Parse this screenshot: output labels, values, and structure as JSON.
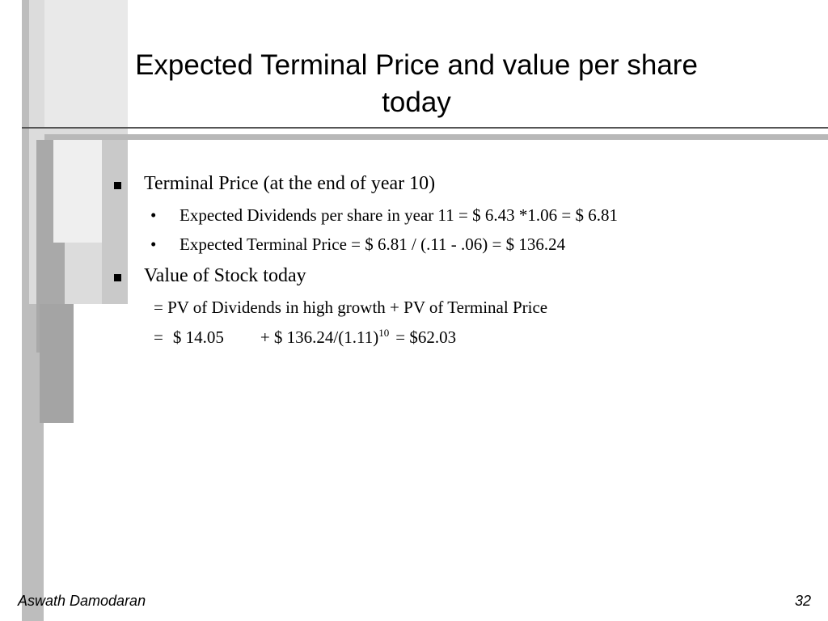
{
  "slide": {
    "title_line1": "Expected Terminal Price and value per share",
    "title_line2": "today",
    "bullets": [
      {
        "text": "Terminal Price (at the end of year 10)",
        "subs": [
          "Expected Dividends per share in year 11 = $ 6.43 *1.06 = $ 6.81",
          "Expected Terminal Price = $ 6.81 / (.11 - .06) = $ 136.24"
        ]
      },
      {
        "text": "Value of Stock today",
        "lines": [
          {
            "text": "= PV of Dividends in high growth + PV of Terminal Price"
          },
          {
            "eq": "=",
            "part1": "$ 14.05",
            "part2": "+ $ 136.24/(1.11)",
            "exponent": "10",
            "part3": "= $62.03"
          }
        ]
      }
    ]
  },
  "footer": {
    "author": "Aswath Damodaran",
    "page": "32"
  },
  "colors": {
    "bar_light": "#e8e8e8",
    "bar_mid": "#c4c4c4",
    "bar_dark": "#a9a9a9",
    "rule": "#555555"
  }
}
